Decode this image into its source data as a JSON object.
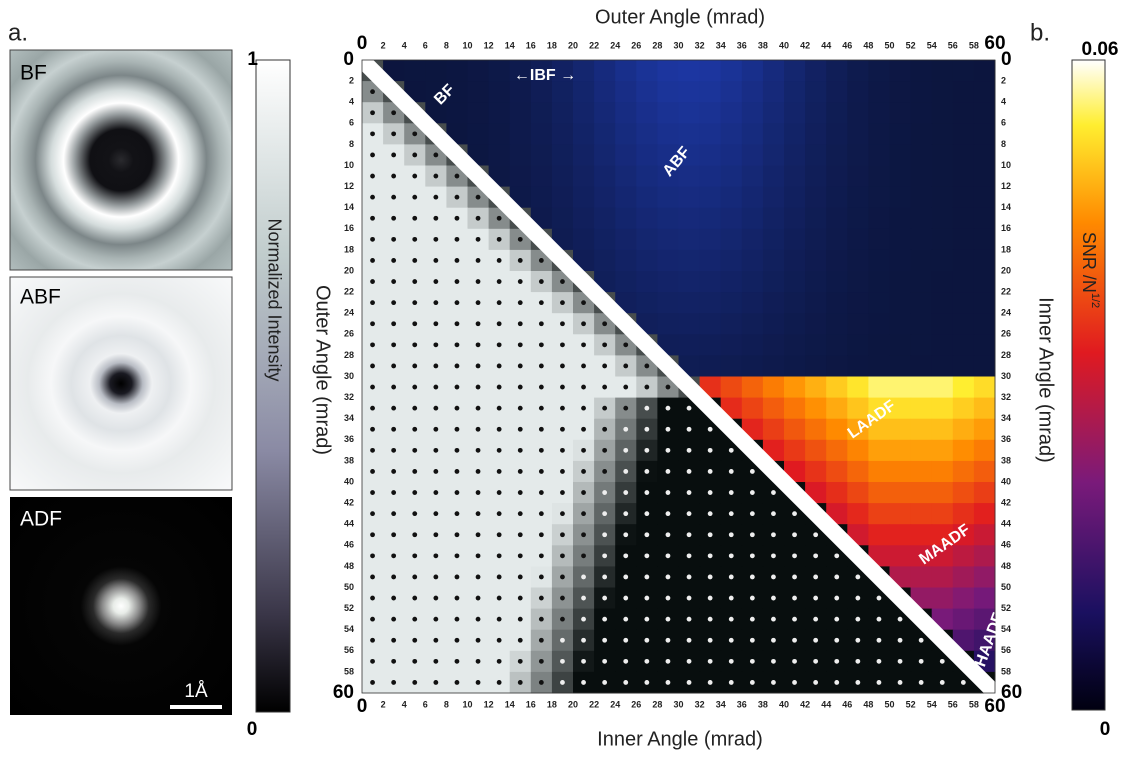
{
  "panel_a": {
    "label": "a.",
    "images": [
      {
        "label": "BF"
      },
      {
        "label": "ABF"
      },
      {
        "label": "ADF"
      }
    ],
    "scale_bar": "1Å",
    "colorbar": {
      "max": 1,
      "min": 0,
      "label": "Normalized  Intensity"
    }
  },
  "panel_b": {
    "label": "b.",
    "axes": {
      "top": {
        "label": "Outer Angle (mrad)",
        "ticks": [
          0,
          2,
          4,
          6,
          8,
          10,
          12,
          14,
          16,
          18,
          20,
          22,
          24,
          26,
          28,
          30,
          32,
          34,
          36,
          38,
          40,
          42,
          44,
          46,
          48,
          50,
          52,
          54,
          56,
          58,
          60
        ]
      },
      "bottom": {
        "label": "Inner Angle (mrad)",
        "ticks": [
          0,
          2,
          4,
          6,
          8,
          10,
          12,
          14,
          16,
          18,
          20,
          22,
          24,
          26,
          28,
          30,
          32,
          34,
          36,
          38,
          40,
          42,
          44,
          46,
          48,
          50,
          52,
          54,
          56,
          58,
          60
        ]
      },
      "left": {
        "label": "Outer Angle (mrad)",
        "ticks": [
          0,
          2,
          4,
          6,
          8,
          10,
          12,
          14,
          16,
          18,
          20,
          22,
          24,
          26,
          28,
          30,
          32,
          34,
          36,
          38,
          40,
          42,
          44,
          46,
          48,
          50,
          52,
          54,
          56,
          58,
          60
        ]
      },
      "right": {
        "label": "Inner Angle (mrad)",
        "ticks": [
          0,
          2,
          4,
          6,
          8,
          10,
          12,
          14,
          16,
          18,
          20,
          22,
          24,
          26,
          28,
          30,
          32,
          34,
          36,
          38,
          40,
          42,
          44,
          46,
          48,
          50,
          52,
          54,
          56,
          58,
          60
        ]
      }
    },
    "annotations": [
      "BF",
      "←IBF →",
      "ABF",
      "LAADF",
      "MAADF",
      "HAADF"
    ],
    "colorbar": {
      "max": 0.06,
      "min": 0,
      "label": "SNR /N",
      "label_sup": "1/2"
    }
  }
}
